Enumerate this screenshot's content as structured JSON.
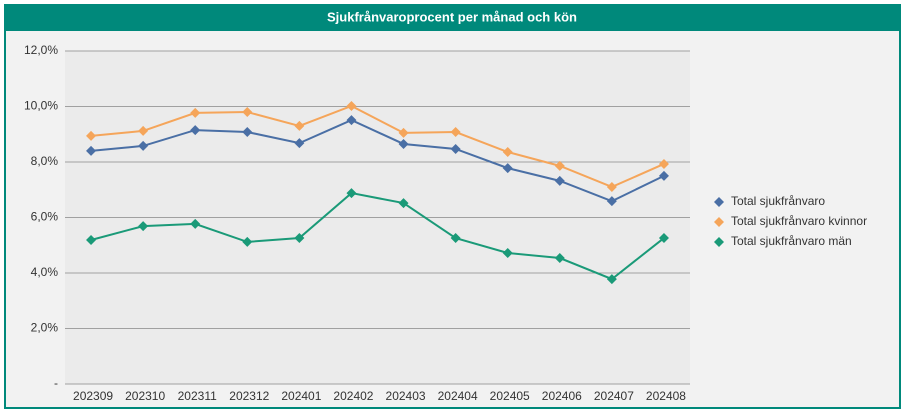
{
  "chart_data": {
    "type": "line",
    "title": "Sjukfrånvaroprocent per månad och kön",
    "categories": [
      "202309",
      "202310",
      "202311",
      "202312",
      "202401",
      "202402",
      "202403",
      "202404",
      "202405",
      "202406",
      "202407",
      "202408"
    ],
    "series": [
      {
        "name": "Total sjukfrånvaro",
        "color": "#4a6fa5",
        "values": [
          8.4,
          8.58,
          9.15,
          9.08,
          8.68,
          9.51,
          8.65,
          8.47,
          7.78,
          7.32,
          6.59,
          7.5
        ]
      },
      {
        "name": "Total sjukfrånvaro kvinnor",
        "color": "#f5a55a",
        "values": [
          8.94,
          9.12,
          9.77,
          9.8,
          9.3,
          10.02,
          9.05,
          9.08,
          8.36,
          7.86,
          7.1,
          7.93
        ]
      },
      {
        "name": "Total sjukfrånvaro män",
        "color": "#1a9a78",
        "values": [
          5.19,
          5.69,
          5.77,
          5.12,
          5.26,
          6.88,
          6.52,
          5.26,
          4.72,
          4.54,
          3.78,
          5.26
        ]
      }
    ],
    "ylim": [
      0,
      12
    ],
    "yticks": [
      {
        "value": 0,
        "label": "-"
      },
      {
        "value": 2,
        "label": "2,0%"
      },
      {
        "value": 4,
        "label": "4,0%"
      },
      {
        "value": 6,
        "label": "6,0%"
      },
      {
        "value": 8,
        "label": "8,0%"
      },
      {
        "value": 10,
        "label": "10,0%"
      },
      {
        "value": 12,
        "label": "12,0%"
      }
    ],
    "grid": true,
    "legend": "right"
  }
}
